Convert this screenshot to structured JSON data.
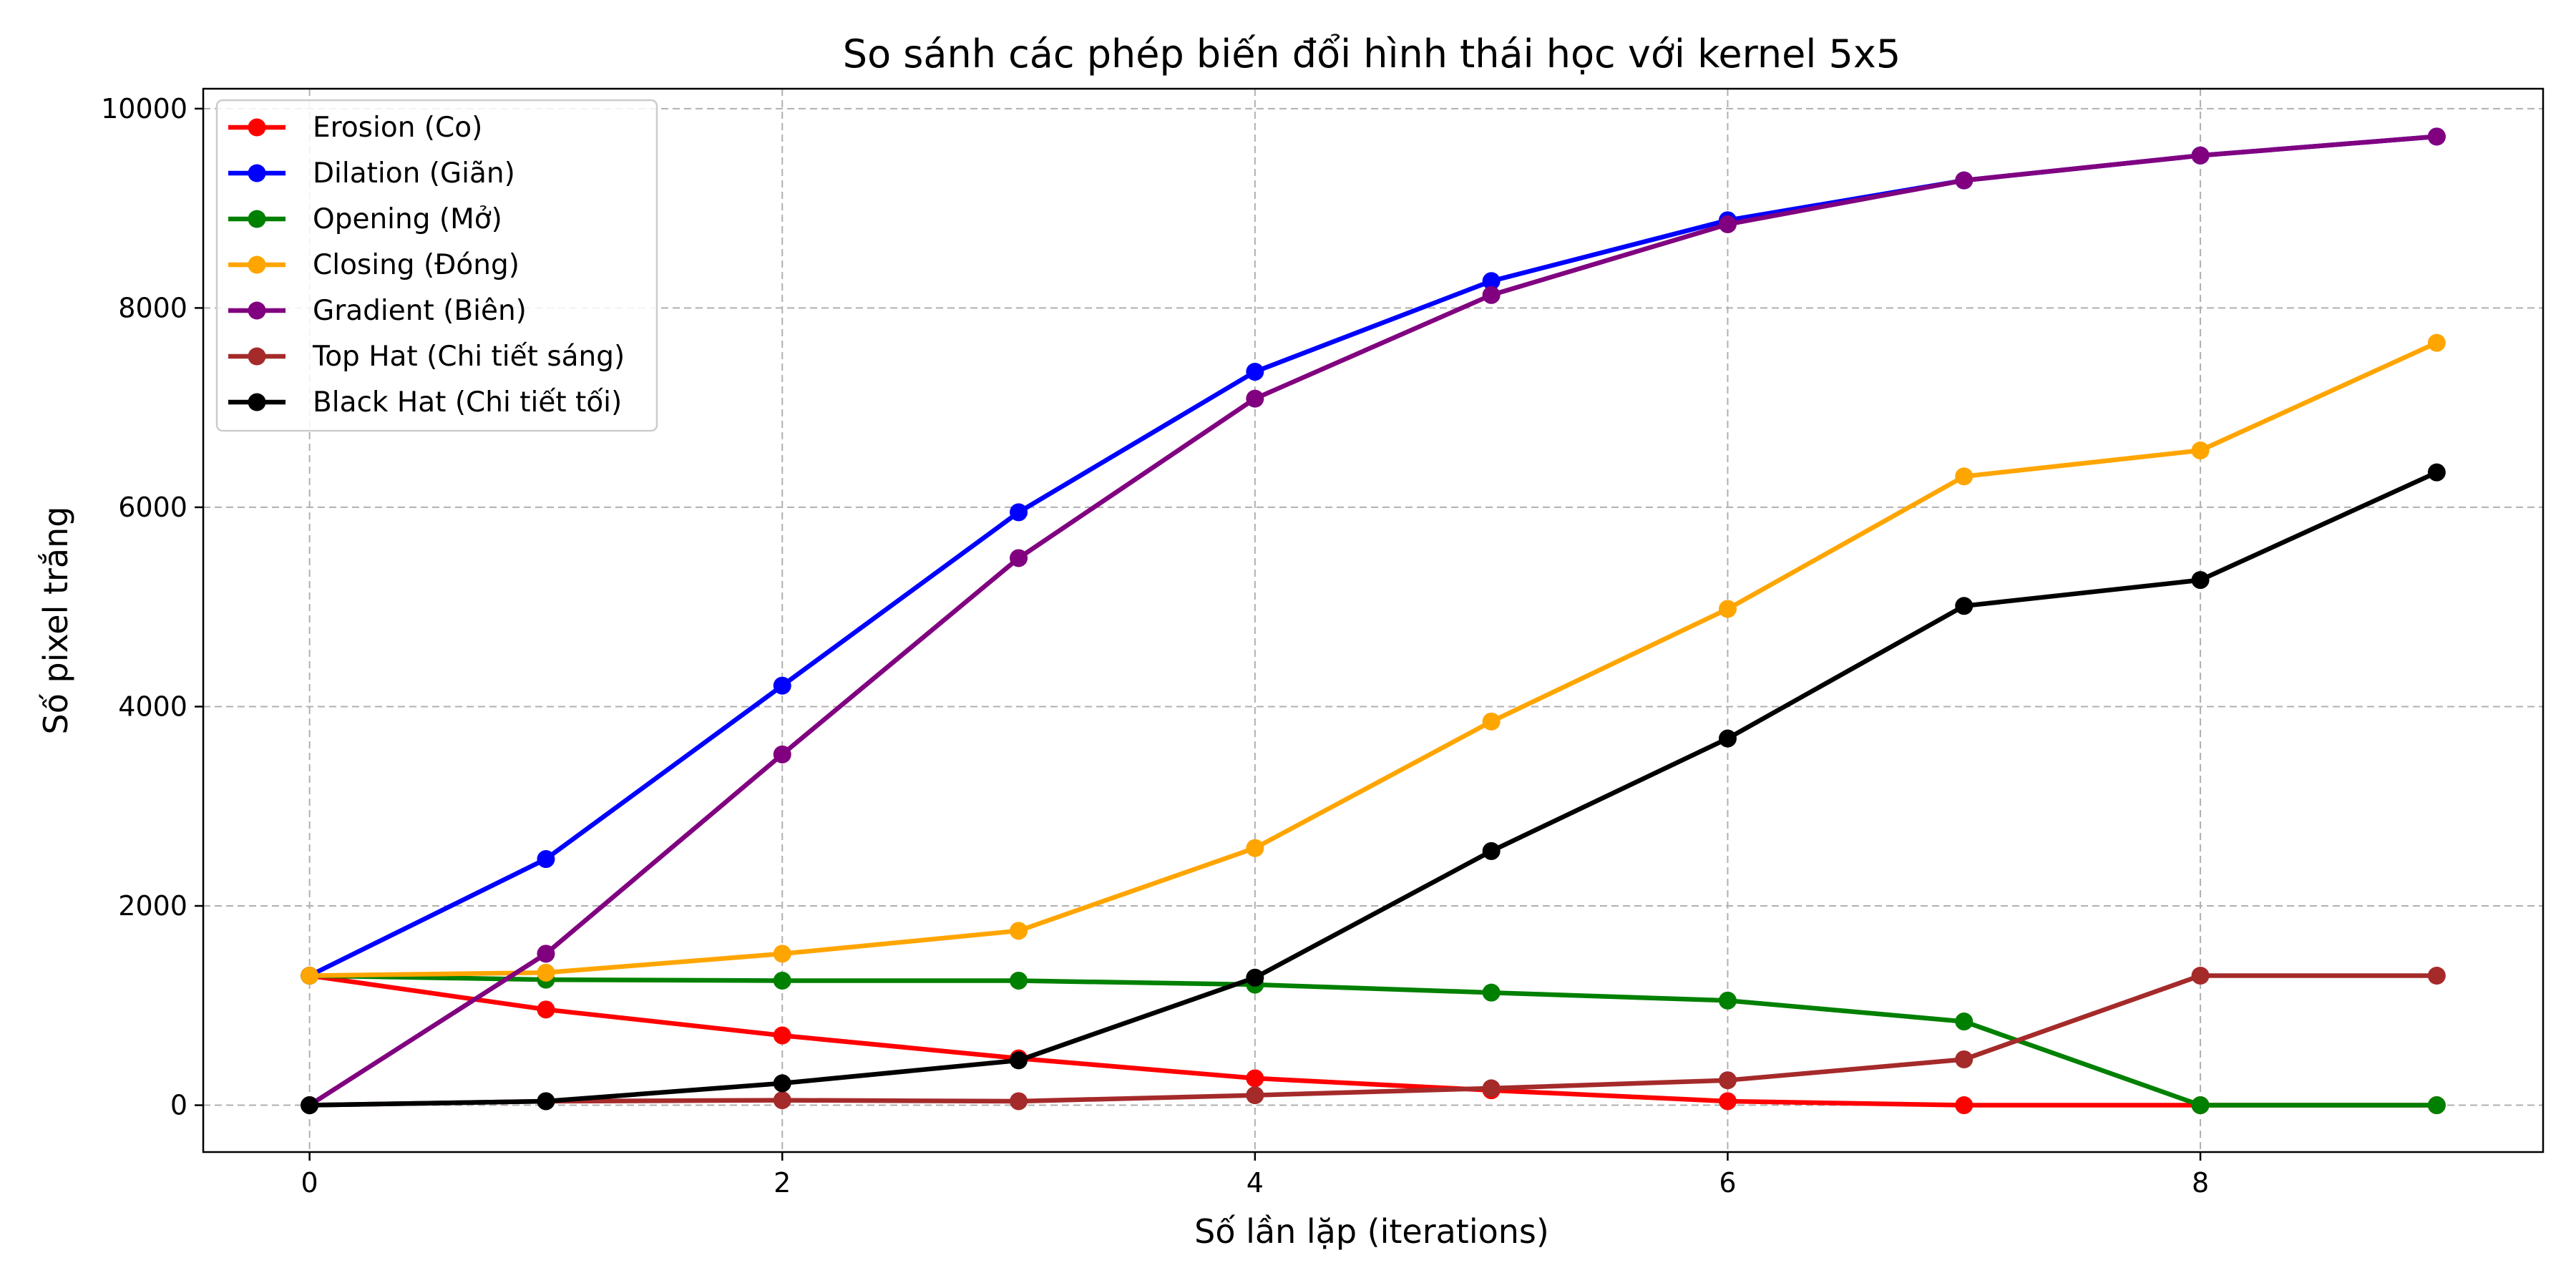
{
  "chart_data": {
    "type": "line",
    "title": "So sánh các phép biến đổi hình thái học với kernel 5x5",
    "xlabel": "Số lần lặp (iterations)",
    "ylabel": "Số pixel trắng",
    "xlim": [
      -0.45,
      9.45
    ],
    "ylim": [
      -470,
      10200
    ],
    "xticks": [
      0,
      2,
      4,
      6,
      8
    ],
    "yticks": [
      0,
      2000,
      4000,
      6000,
      8000,
      10000
    ],
    "grid": true,
    "legend_position": "top-left",
    "x": [
      0,
      1,
      2,
      3,
      4,
      5,
      6,
      7,
      8,
      9
    ],
    "series": [
      {
        "name": "Erosion (Co)",
        "color": "#ff0000",
        "values": [
          1300,
          960,
          700,
          470,
          270,
          150,
          40,
          0,
          0,
          0
        ]
      },
      {
        "name": "Dilation (Giãn)",
        "color": "#0000ff",
        "values": [
          1300,
          2470,
          4210,
          5950,
          7360,
          8270,
          8880,
          9280,
          9530,
          9720
        ]
      },
      {
        "name": "Opening (Mở)",
        "color": "#008000",
        "values": [
          1300,
          1260,
          1250,
          1250,
          1210,
          1130,
          1050,
          840,
          0,
          0
        ]
      },
      {
        "name": "Closing (Đóng)",
        "color": "#ffa500",
        "values": [
          1300,
          1330,
          1520,
          1750,
          2580,
          3850,
          4980,
          6310,
          6570,
          7650
        ]
      },
      {
        "name": "Gradient (Biên)",
        "color": "#800080",
        "values": [
          0,
          1520,
          3520,
          5490,
          7090,
          8130,
          8840,
          9280,
          9530,
          9720
        ]
      },
      {
        "name": "Top Hat (Chi tiết sáng)",
        "color": "#a52a2a",
        "values": [
          0,
          40,
          50,
          40,
          100,
          170,
          250,
          460,
          1300,
          1300
        ]
      },
      {
        "name": "Black Hat (Chi tiết tối)",
        "color": "#000000",
        "values": [
          0,
          40,
          220,
          450,
          1280,
          2550,
          3680,
          5010,
          5270,
          6350
        ]
      }
    ]
  }
}
